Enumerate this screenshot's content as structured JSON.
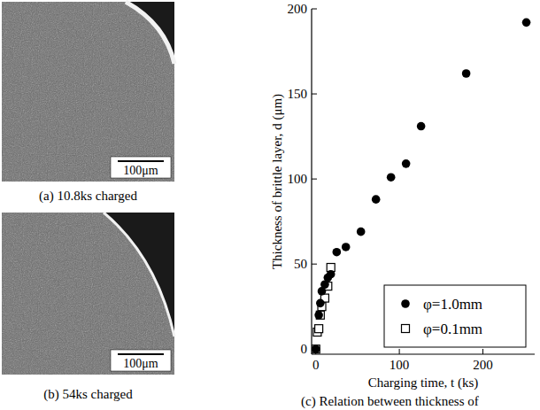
{
  "panels": [
    {
      "caption": "(a) 10.8ks charged",
      "scale_bar": "100μm"
    },
    {
      "caption": "(b) 54ks charged",
      "scale_bar": "100μm"
    }
  ],
  "chart_data": {
    "type": "scatter",
    "title": "(c) Relation between thickness of",
    "x_label": "Charging time, t (ks)",
    "y_label": "Thickness of brittle layer, d (μm)",
    "xlim": [
      -5,
      262
    ],
    "ylim": [
      -3,
      200
    ],
    "xticks": [
      0,
      100,
      200
    ],
    "yticks": [
      0,
      50,
      100,
      150,
      200
    ],
    "legend": "bottom-right",
    "series": [
      {
        "name": "φ=1.0mm",
        "color": "#000000",
        "marker": "circle",
        "x": [
          0,
          3.6,
          5.4,
          7.2,
          10.8,
          14.4,
          18,
          25,
          36,
          54,
          72,
          90,
          108,
          126,
          180,
          252
        ],
        "values": [
          0,
          20,
          27,
          34,
          38,
          42,
          44,
          57,
          60,
          69,
          88,
          101,
          109,
          131,
          162,
          192
        ]
      },
      {
        "name": "φ=0.1mm",
        "color": "#000000",
        "marker": "square",
        "x": [
          0,
          1.8,
          3.6,
          5.4,
          7.2,
          10.8,
          14.4,
          18
        ],
        "values": [
          0,
          10,
          12,
          20,
          25,
          30,
          37,
          48
        ]
      }
    ]
  }
}
